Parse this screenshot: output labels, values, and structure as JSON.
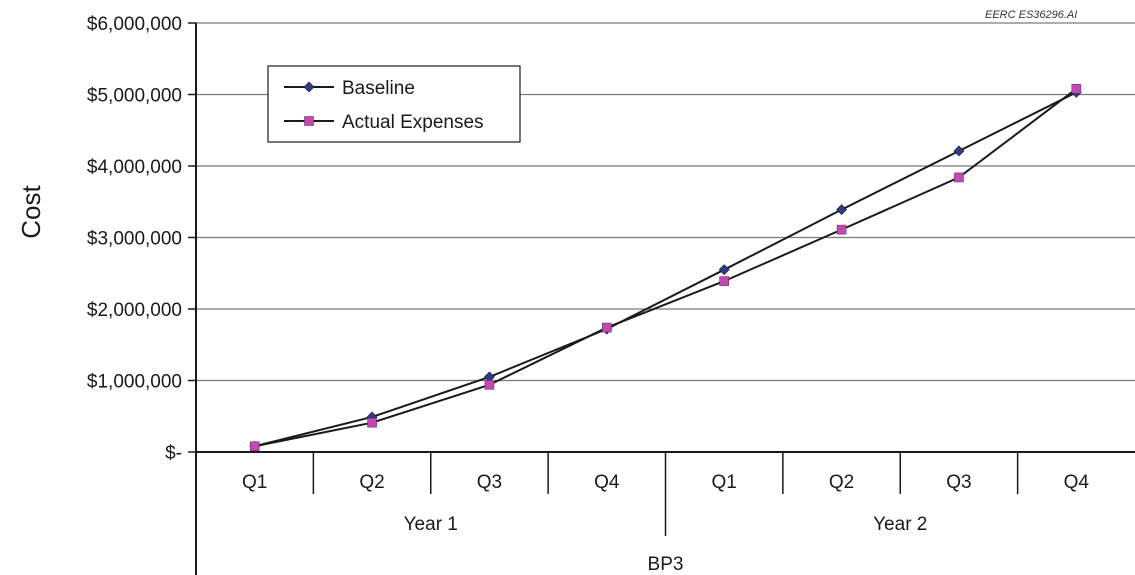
{
  "credit": "EERC ES36296.AI",
  "chart_data": {
    "type": "line",
    "title": "",
    "ylabel": "Cost",
    "xlabel": "",
    "ylim": [
      0,
      6000000
    ],
    "y_ticks": [
      {
        "value": 0,
        "label": "$-"
      },
      {
        "value": 1000000,
        "label": "$1,000,000"
      },
      {
        "value": 2000000,
        "label": "$2,000,000"
      },
      {
        "value": 3000000,
        "label": "$3,000,000"
      },
      {
        "value": 4000000,
        "label": "$4,000,000"
      },
      {
        "value": 5000000,
        "label": "$5,000,000"
      },
      {
        "value": 6000000,
        "label": "$6,000,000"
      }
    ],
    "grid": true,
    "legend_position": "top-left",
    "categories": [
      "Q1",
      "Q2",
      "Q3",
      "Q4",
      "Q1",
      "Q2",
      "Q3",
      "Q4"
    ],
    "groups": [
      {
        "label": "Year 1",
        "count": 4
      },
      {
        "label": "Year 2",
        "count": 4
      }
    ],
    "outer_group": "BP3",
    "series": [
      {
        "name": "Baseline",
        "marker": "diamond",
        "color": "#2e3a8c",
        "values": [
          80000,
          490000,
          1050000,
          1720000,
          2550000,
          3390000,
          4210000,
          5030000
        ]
      },
      {
        "name": "Actual Expenses",
        "marker": "square",
        "color": "#c04ab0",
        "values": [
          80000,
          410000,
          940000,
          1740000,
          2390000,
          3110000,
          3840000,
          5080000
        ]
      }
    ]
  }
}
